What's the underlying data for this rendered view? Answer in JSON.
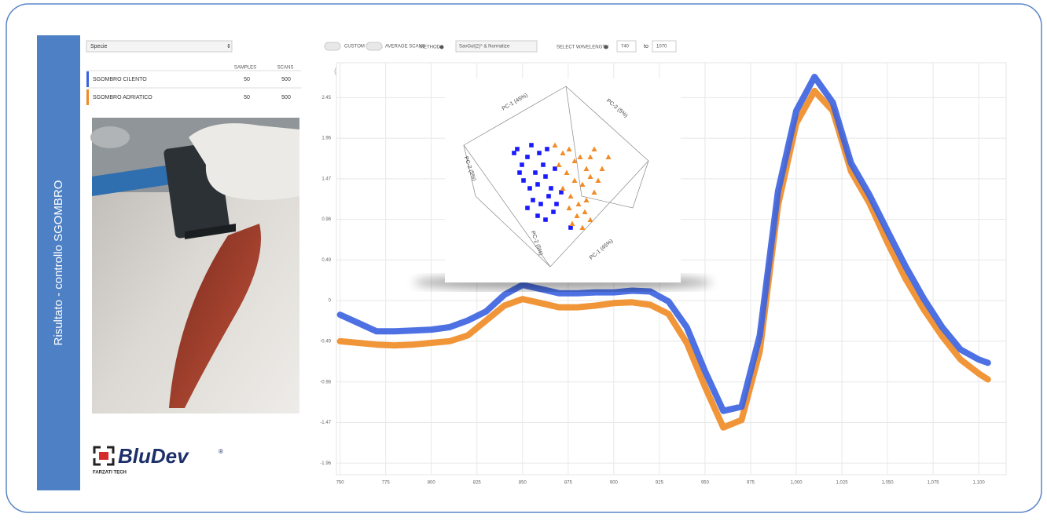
{
  "sidebar": {
    "title": "Risultato - controllo SGOMBRO"
  },
  "panel": {
    "dropdown": "Specie",
    "table": {
      "headers": [
        "SAMPLES",
        "SCANS"
      ],
      "rows": [
        [
          "SGOMBRO CILENTO",
          50,
          500
        ],
        [
          "SGOMBRO ADRIATICO",
          50,
          500
        ]
      ]
    }
  },
  "logo": {
    "brand": "BluDev",
    "reg": "®",
    "company": "FARZATI TECH"
  },
  "toolbar": {
    "custom_model": "CUSTOM MODEL",
    "average_scans": "AVERAGE SCANS",
    "method_label": "METHOD",
    "method": "SavGol(2)^ & Normalize",
    "wavelength_label": "SELECT WAVELENGTH",
    "from": "740",
    "to_label": "to",
    "to": "1070"
  },
  "chart_data": [
    {
      "type": "line",
      "x": [
        750,
        760,
        770,
        780,
        790,
        800,
        810,
        820,
        830,
        840,
        850,
        860,
        870,
        880,
        890,
        900,
        910,
        920,
        930,
        940,
        950,
        960,
        970,
        980,
        990,
        1000,
        1010,
        1020,
        1030,
        1040,
        1050,
        1060,
        1070,
        1080,
        1090,
        1100,
        1105
      ],
      "series": [
        {
          "color": "#3a62e0",
          "values": [
            -0.17,
            -0.27,
            -0.37,
            -0.37,
            -0.36,
            -0.35,
            -0.32,
            -0.24,
            -0.13,
            0.07,
            0.19,
            0.14,
            0.09,
            0.09,
            0.1,
            0.1,
            0.12,
            0.11,
            -0.01,
            -0.32,
            -0.85,
            -1.33,
            -1.28,
            -0.42,
            1.32,
            2.29,
            2.7,
            2.39,
            1.66,
            1.28,
            0.84,
            0.41,
            0.02,
            -0.32,
            -0.59,
            -0.71,
            -0.75
          ]
        },
        {
          "color": "#f08a24",
          "values": [
            -0.49,
            -0.51,
            -0.53,
            -0.54,
            -0.53,
            -0.51,
            -0.49,
            -0.42,
            -0.24,
            -0.06,
            0.02,
            -0.03,
            -0.08,
            -0.08,
            -0.06,
            -0.03,
            -0.02,
            -0.05,
            -0.16,
            -0.51,
            -1.04,
            -1.53,
            -1.44,
            -0.61,
            1.15,
            2.14,
            2.53,
            2.29,
            1.56,
            1.18,
            0.7,
            0.26,
            -0.11,
            -0.43,
            -0.71,
            -0.88,
            -0.95
          ]
        }
      ],
      "xlim": [
        748,
        1115
      ],
      "xticks": [
        750,
        775,
        800,
        825,
        850,
        875,
        900,
        925,
        950,
        975,
        {
          "value": 1000,
          "label": "1,000"
        },
        {
          "value": 1025,
          "label": "1,025"
        },
        {
          "value": 1050,
          "label": "1,050"
        },
        {
          "value": 1075,
          "label": "1,075"
        },
        {
          "value": 1100,
          "label": "1,100"
        }
      ],
      "ylim": [
        -2.1,
        2.87
      ],
      "yticks": [
        2.45,
        1.96,
        1.47,
        0.98,
        0.49,
        0,
        -0.49,
        -0.98,
        -1.47,
        -1.96
      ],
      "grid": true
    },
    {
      "type": "scatter",
      "axis_labels": [
        "PC-1 (45%)",
        "PC-3 (5%)",
        "PC-2 (5%)",
        "PC-2 (5%)",
        "PC-1 (45%)"
      ],
      "xlim": [
        0,
        300
      ],
      "ylim": [
        0,
        260
      ],
      "series": [
        {
          "color": "#1a1aff",
          "marker": "square",
          "x": [
            92,
            98,
            105,
            110,
            115,
            120,
            125,
            130,
            100,
            108,
            118,
            128,
            135,
            140,
            112,
            122,
            132,
            142,
            105,
            118,
            128,
            138,
            148,
            95,
            88,
            160
          ],
          "y": [
            170,
            150,
            160,
            175,
            140,
            165,
            150,
            170,
            130,
            120,
            125,
            135,
            120,
            145,
            105,
            100,
            110,
            100,
            95,
            85,
            80,
            90,
            115,
            140,
            165,
            70
          ]
        },
        {
          "color": "#f28c28",
          "marker": "triangle",
          "x": [
            140,
            150,
            158,
            165,
            172,
            180,
            155,
            165,
            175,
            185,
            150,
            160,
            170,
            180,
            190,
            158,
            168,
            178,
            195,
            200,
            185,
            175,
            162,
            190,
            145,
            185,
            208
          ],
          "y": [
            175,
            165,
            170,
            155,
            160,
            145,
            140,
            130,
            125,
            135,
            120,
            110,
            100,
            105,
            115,
            95,
            85,
            90,
            130,
            145,
            80,
            70,
            75,
            170,
            150,
            160,
            160
          ]
        }
      ]
    }
  ]
}
